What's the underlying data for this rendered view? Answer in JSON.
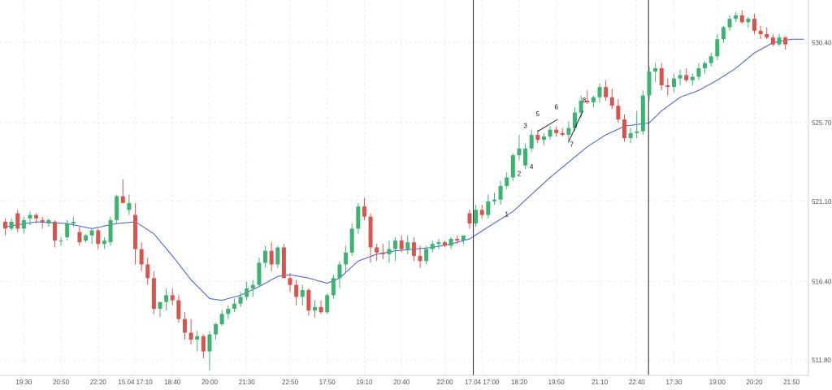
{
  "chart_data": {
    "type": "candlestick",
    "title": "",
    "xlabel": "",
    "ylabel": "",
    "grid": true,
    "y_axis_position": "right",
    "ylim": [
      510.9,
      532.9
    ],
    "yticks": [
      "530.40",
      "525.70",
      "521.10",
      "516.40",
      "511.80"
    ],
    "xticks": [
      {
        "i": 3,
        "label": "19:30"
      },
      {
        "i": 9,
        "label": "20:50"
      },
      {
        "i": 15,
        "label": "22:20"
      },
      {
        "i": 21,
        "label": "15.04 17:10"
      },
      {
        "i": 27,
        "label": "18:40"
      },
      {
        "i": 33,
        "label": "20:00"
      },
      {
        "i": 39,
        "label": "21:30"
      },
      {
        "i": 46,
        "label": "22:50"
      },
      {
        "i": 52,
        "label": "17:50"
      },
      {
        "i": 58,
        "label": "19:10"
      },
      {
        "i": 64,
        "label": "20:40"
      },
      {
        "i": 71,
        "label": "22:00"
      },
      {
        "i": 77,
        "label": "17.04 17:00"
      },
      {
        "i": 83,
        "label": "18:20"
      },
      {
        "i": 89,
        "label": "19:50"
      },
      {
        "i": 96,
        "label": "21:10"
      },
      {
        "i": 102,
        "label": "22:40"
      },
      {
        "i": 108,
        "label": "17:30"
      },
      {
        "i": 115,
        "label": "19:00"
      },
      {
        "i": 121,
        "label": "20:20"
      },
      {
        "i": 127,
        "label": "21:50"
      }
    ],
    "vertical_markers": [
      75.6,
      103.9
    ],
    "colors": {
      "up": "#3cb371",
      "down": "#d9534f",
      "ma": "#3a5bd9",
      "marker": "#222222"
    },
    "candles": [
      [
        519.9,
        520.1,
        519.1,
        519.5
      ],
      [
        519.5,
        520.1,
        519.4,
        519.9
      ],
      [
        520.4,
        520.6,
        519.3,
        519.5
      ],
      [
        519.5,
        520.2,
        519.2,
        520.0
      ],
      [
        520.1,
        520.5,
        519.7,
        520.3
      ],
      [
        520.3,
        520.4,
        519.8,
        520.1
      ],
      [
        520.0,
        520.2,
        519.5,
        519.9
      ],
      [
        519.8,
        520.1,
        519.6,
        520.0
      ],
      [
        519.9,
        520.0,
        518.4,
        518.8
      ],
      [
        518.8,
        519.0,
        518.5,
        518.8
      ],
      [
        519.0,
        520.0,
        518.8,
        519.8
      ],
      [
        519.8,
        520.2,
        519.6,
        519.9
      ],
      [
        519.3,
        519.6,
        518.5,
        518.7
      ],
      [
        518.8,
        519.2,
        518.7,
        519.1
      ],
      [
        519.1,
        519.5,
        518.6,
        519.4
      ],
      [
        519.4,
        519.5,
        518.3,
        518.6
      ],
      [
        518.6,
        519.0,
        518.3,
        518.8
      ],
      [
        518.7,
        520.2,
        518.5,
        520.0
      ],
      [
        520.0,
        521.5,
        519.8,
        521.4
      ],
      [
        521.4,
        522.4,
        521.0,
        521.0
      ],
      [
        520.6,
        521.5,
        520.3,
        521.0
      ],
      [
        520.3,
        521.0,
        517.4,
        518.3
      ],
      [
        518.3,
        518.7,
        517.0,
        517.4
      ],
      [
        517.4,
        517.8,
        516.2,
        516.6
      ],
      [
        516.6,
        517.0,
        514.5,
        514.8
      ],
      [
        514.8,
        515.2,
        514.3,
        515.2
      ],
      [
        515.2,
        516.0,
        514.7,
        515.6
      ],
      [
        515.6,
        516.0,
        515.0,
        515.3
      ],
      [
        515.3,
        515.6,
        514.0,
        514.2
      ],
      [
        514.2,
        514.6,
        513.0,
        513.4
      ],
      [
        513.4,
        514.2,
        512.7,
        513.0
      ],
      [
        513.0,
        513.5,
        512.3,
        513.2
      ],
      [
        513.2,
        513.3,
        511.9,
        512.3
      ],
      [
        512.3,
        513.5,
        511.2,
        513.3
      ],
      [
        513.3,
        514.0,
        513.0,
        513.9
      ],
      [
        513.9,
        514.7,
        513.8,
        514.5
      ],
      [
        514.5,
        515.0,
        514.2,
        514.8
      ],
      [
        514.8,
        515.4,
        514.6,
        515.1
      ],
      [
        515.1,
        515.8,
        514.9,
        515.5
      ],
      [
        515.5,
        516.4,
        515.3,
        516.0
      ],
      [
        516.0,
        516.5,
        515.5,
        516.2
      ],
      [
        516.2,
        517.8,
        516.1,
        517.5
      ],
      [
        517.5,
        518.5,
        517.2,
        518.2
      ],
      [
        518.2,
        518.7,
        517.0,
        517.4
      ],
      [
        517.4,
        518.5,
        517.2,
        518.4
      ],
      [
        518.4,
        518.6,
        516.8,
        516.6
      ],
      [
        516.6,
        516.9,
        515.8,
        516.2
      ],
      [
        516.2,
        516.5,
        515.0,
        515.5
      ],
      [
        515.5,
        516.2,
        515.0,
        515.9
      ],
      [
        515.9,
        516.0,
        514.4,
        514.7
      ],
      [
        514.7,
        515.3,
        514.3,
        514.9
      ],
      [
        514.9,
        515.3,
        514.5,
        514.6
      ],
      [
        514.6,
        515.7,
        514.5,
        515.6
      ],
      [
        515.6,
        516.8,
        515.4,
        516.6
      ],
      [
        516.6,
        517.6,
        516.0,
        517.4
      ],
      [
        517.4,
        518.5,
        517.0,
        518.1
      ],
      [
        518.1,
        519.8,
        517.9,
        519.5
      ],
      [
        519.5,
        521.0,
        519.2,
        520.8
      ],
      [
        520.8,
        521.3,
        520.0,
        520.2
      ],
      [
        520.2,
        520.4,
        517.5,
        518.4
      ],
      [
        518.4,
        518.6,
        517.6,
        518.1
      ],
      [
        518.1,
        518.6,
        517.7,
        518.0
      ],
      [
        518.0,
        518.8,
        517.5,
        518.3
      ],
      [
        518.3,
        519.0,
        517.6,
        518.8
      ],
      [
        518.8,
        519.1,
        518.1,
        518.3
      ],
      [
        518.3,
        519.1,
        518.0,
        518.7
      ],
      [
        518.7,
        519.0,
        517.6,
        517.9
      ],
      [
        517.9,
        518.5,
        517.2,
        517.6
      ],
      [
        517.6,
        518.5,
        517.4,
        518.3
      ],
      [
        518.3,
        518.8,
        518.1,
        518.6
      ],
      [
        518.6,
        518.9,
        518.3,
        518.7
      ],
      [
        518.7,
        518.8,
        518.4,
        518.5
      ],
      [
        518.5,
        519.0,
        518.3,
        518.9
      ],
      [
        518.9,
        519.1,
        518.6,
        518.8
      ],
      [
        518.8,
        519.1,
        518.6,
        519.1
      ],
      [
        520.4,
        520.6,
        519.5,
        519.8
      ],
      [
        519.8,
        520.9,
        519.6,
        520.6
      ],
      [
        520.6,
        520.9,
        520.1,
        520.3
      ],
      [
        520.3,
        521.5,
        520.1,
        521.1
      ],
      [
        521.1,
        521.6,
        520.9,
        521.2
      ],
      [
        521.2,
        522.3,
        520.9,
        522.0
      ],
      [
        522.0,
        522.8,
        521.8,
        522.5
      ],
      [
        522.5,
        523.9,
        522.3,
        523.8
      ],
      [
        523.8,
        525.0,
        523.5,
        524.2
      ],
      [
        523.2,
        524.5,
        523.0,
        524.2
      ],
      [
        524.2,
        525.3,
        524.0,
        525.0
      ],
      [
        525.0,
        525.3,
        524.5,
        524.7
      ],
      [
        524.7,
        525.1,
        524.4,
        524.9
      ],
      [
        524.9,
        525.5,
        524.7,
        525.3
      ],
      [
        525.3,
        525.5,
        524.9,
        525.1
      ],
      [
        525.1,
        525.4,
        524.9,
        525.0
      ],
      [
        525.0,
        525.8,
        524.5,
        525.4
      ],
      [
        525.4,
        526.6,
        525.2,
        526.3
      ],
      [
        526.3,
        527.3,
        526.0,
        527.0
      ],
      [
        527.0,
        527.6,
        526.8,
        526.9
      ],
      [
        526.9,
        527.3,
        526.6,
        527.2
      ],
      [
        527.2,
        528.0,
        526.9,
        527.8
      ],
      [
        527.8,
        528.2,
        527.0,
        527.2
      ],
      [
        527.2,
        527.7,
        526.5,
        526.7
      ],
      [
        526.7,
        527.1,
        525.7,
        525.9
      ],
      [
        525.9,
        526.2,
        524.6,
        524.8
      ],
      [
        524.8,
        525.4,
        524.5,
        525.1
      ],
      [
        525.1,
        526.4,
        524.8,
        525.2
      ],
      [
        525.2,
        527.6,
        525.0,
        527.3
      ],
      [
        527.3,
        529.0,
        527.0,
        528.7
      ],
      [
        528.7,
        529.2,
        528.1,
        528.9
      ],
      [
        528.9,
        529.2,
        527.6,
        527.9
      ],
      [
        527.9,
        528.3,
        527.3,
        527.8
      ],
      [
        527.8,
        528.6,
        527.5,
        528.3
      ],
      [
        528.3,
        528.8,
        527.9,
        528.5
      ],
      [
        528.5,
        528.9,
        528.1,
        528.2
      ],
      [
        528.2,
        528.6,
        527.9,
        528.4
      ],
      [
        528.4,
        529.2,
        528.2,
        528.9
      ],
      [
        528.9,
        529.3,
        528.6,
        529.2
      ],
      [
        529.2,
        529.8,
        529.0,
        529.6
      ],
      [
        529.6,
        530.9,
        529.4,
        530.6
      ],
      [
        530.6,
        531.4,
        530.4,
        531.3
      ],
      [
        531.3,
        532.0,
        531.1,
        531.8
      ],
      [
        531.8,
        532.2,
        531.6,
        532.0
      ],
      [
        532.0,
        532.3,
        531.5,
        531.6
      ],
      [
        531.6,
        531.9,
        531.3,
        531.8
      ],
      [
        531.8,
        532.1,
        530.9,
        531.1
      ],
      [
        531.1,
        531.4,
        530.6,
        530.9
      ],
      [
        530.9,
        531.3,
        530.6,
        530.7
      ],
      [
        530.7,
        530.9,
        530.2,
        530.3
      ],
      [
        530.3,
        530.9,
        530.2,
        530.7
      ],
      [
        530.7,
        530.8,
        530.0,
        530.3
      ]
    ],
    "moving_average": [
      [
        0,
        519.6
      ],
      [
        5,
        519.9
      ],
      [
        10,
        519.8
      ],
      [
        14,
        519.5
      ],
      [
        18,
        519.8
      ],
      [
        21,
        519.9
      ],
      [
        24,
        519.2
      ],
      [
        27,
        517.9
      ],
      [
        30,
        516.5
      ],
      [
        33,
        515.4
      ],
      [
        35,
        515.3
      ],
      [
        38,
        515.6
      ],
      [
        41,
        516.1
      ],
      [
        44,
        516.7
      ],
      [
        46,
        516.8
      ],
      [
        49,
        516.6
      ],
      [
        52,
        516.3
      ],
      [
        54,
        516.6
      ],
      [
        57,
        517.6
      ],
      [
        60,
        518.0
      ],
      [
        63,
        518.2
      ],
      [
        66,
        518.3
      ],
      [
        69,
        518.4
      ],
      [
        72,
        518.6
      ],
      [
        75,
        518.9
      ],
      [
        78,
        519.6
      ],
      [
        82,
        520.5
      ],
      [
        85,
        521.5
      ],
      [
        88,
        522.5
      ],
      [
        91,
        523.4
      ],
      [
        94,
        524.3
      ],
      [
        97,
        525.0
      ],
      [
        100,
        525.5
      ],
      [
        102,
        525.6
      ],
      [
        104,
        525.7
      ],
      [
        106,
        526.4
      ],
      [
        109,
        527.2
      ],
      [
        112,
        527.6
      ],
      [
        115,
        528.2
      ],
      [
        118,
        528.9
      ],
      [
        121,
        529.8
      ],
      [
        124,
        530.4
      ],
      [
        127,
        530.6
      ],
      [
        129,
        530.6
      ]
    ],
    "annotations": [
      {
        "label": "1",
        "i": 81,
        "y": 520.2
      },
      {
        "label": "2",
        "i": 83,
        "y": 522.6
      },
      {
        "label": "3",
        "i": 84,
        "y": 525.4
      },
      {
        "label": "4",
        "i": 85,
        "y": 523.0
      },
      {
        "label": "5",
        "i": 86,
        "y": 526.1
      },
      {
        "label": "6",
        "i": 89,
        "y": 526.5
      },
      {
        "label": "7",
        "i": 91.5,
        "y": 524.3
      },
      {
        "label": "8",
        "i": 93.5,
        "y": 526.9
      }
    ],
    "trend_lines": [
      {
        "from": [
          86.0,
          525.2
        ],
        "to": [
          89.2,
          525.9
        ]
      },
      {
        "from": [
          91.0,
          524.6
        ],
        "to": [
          93.3,
          526.4
        ]
      }
    ]
  }
}
